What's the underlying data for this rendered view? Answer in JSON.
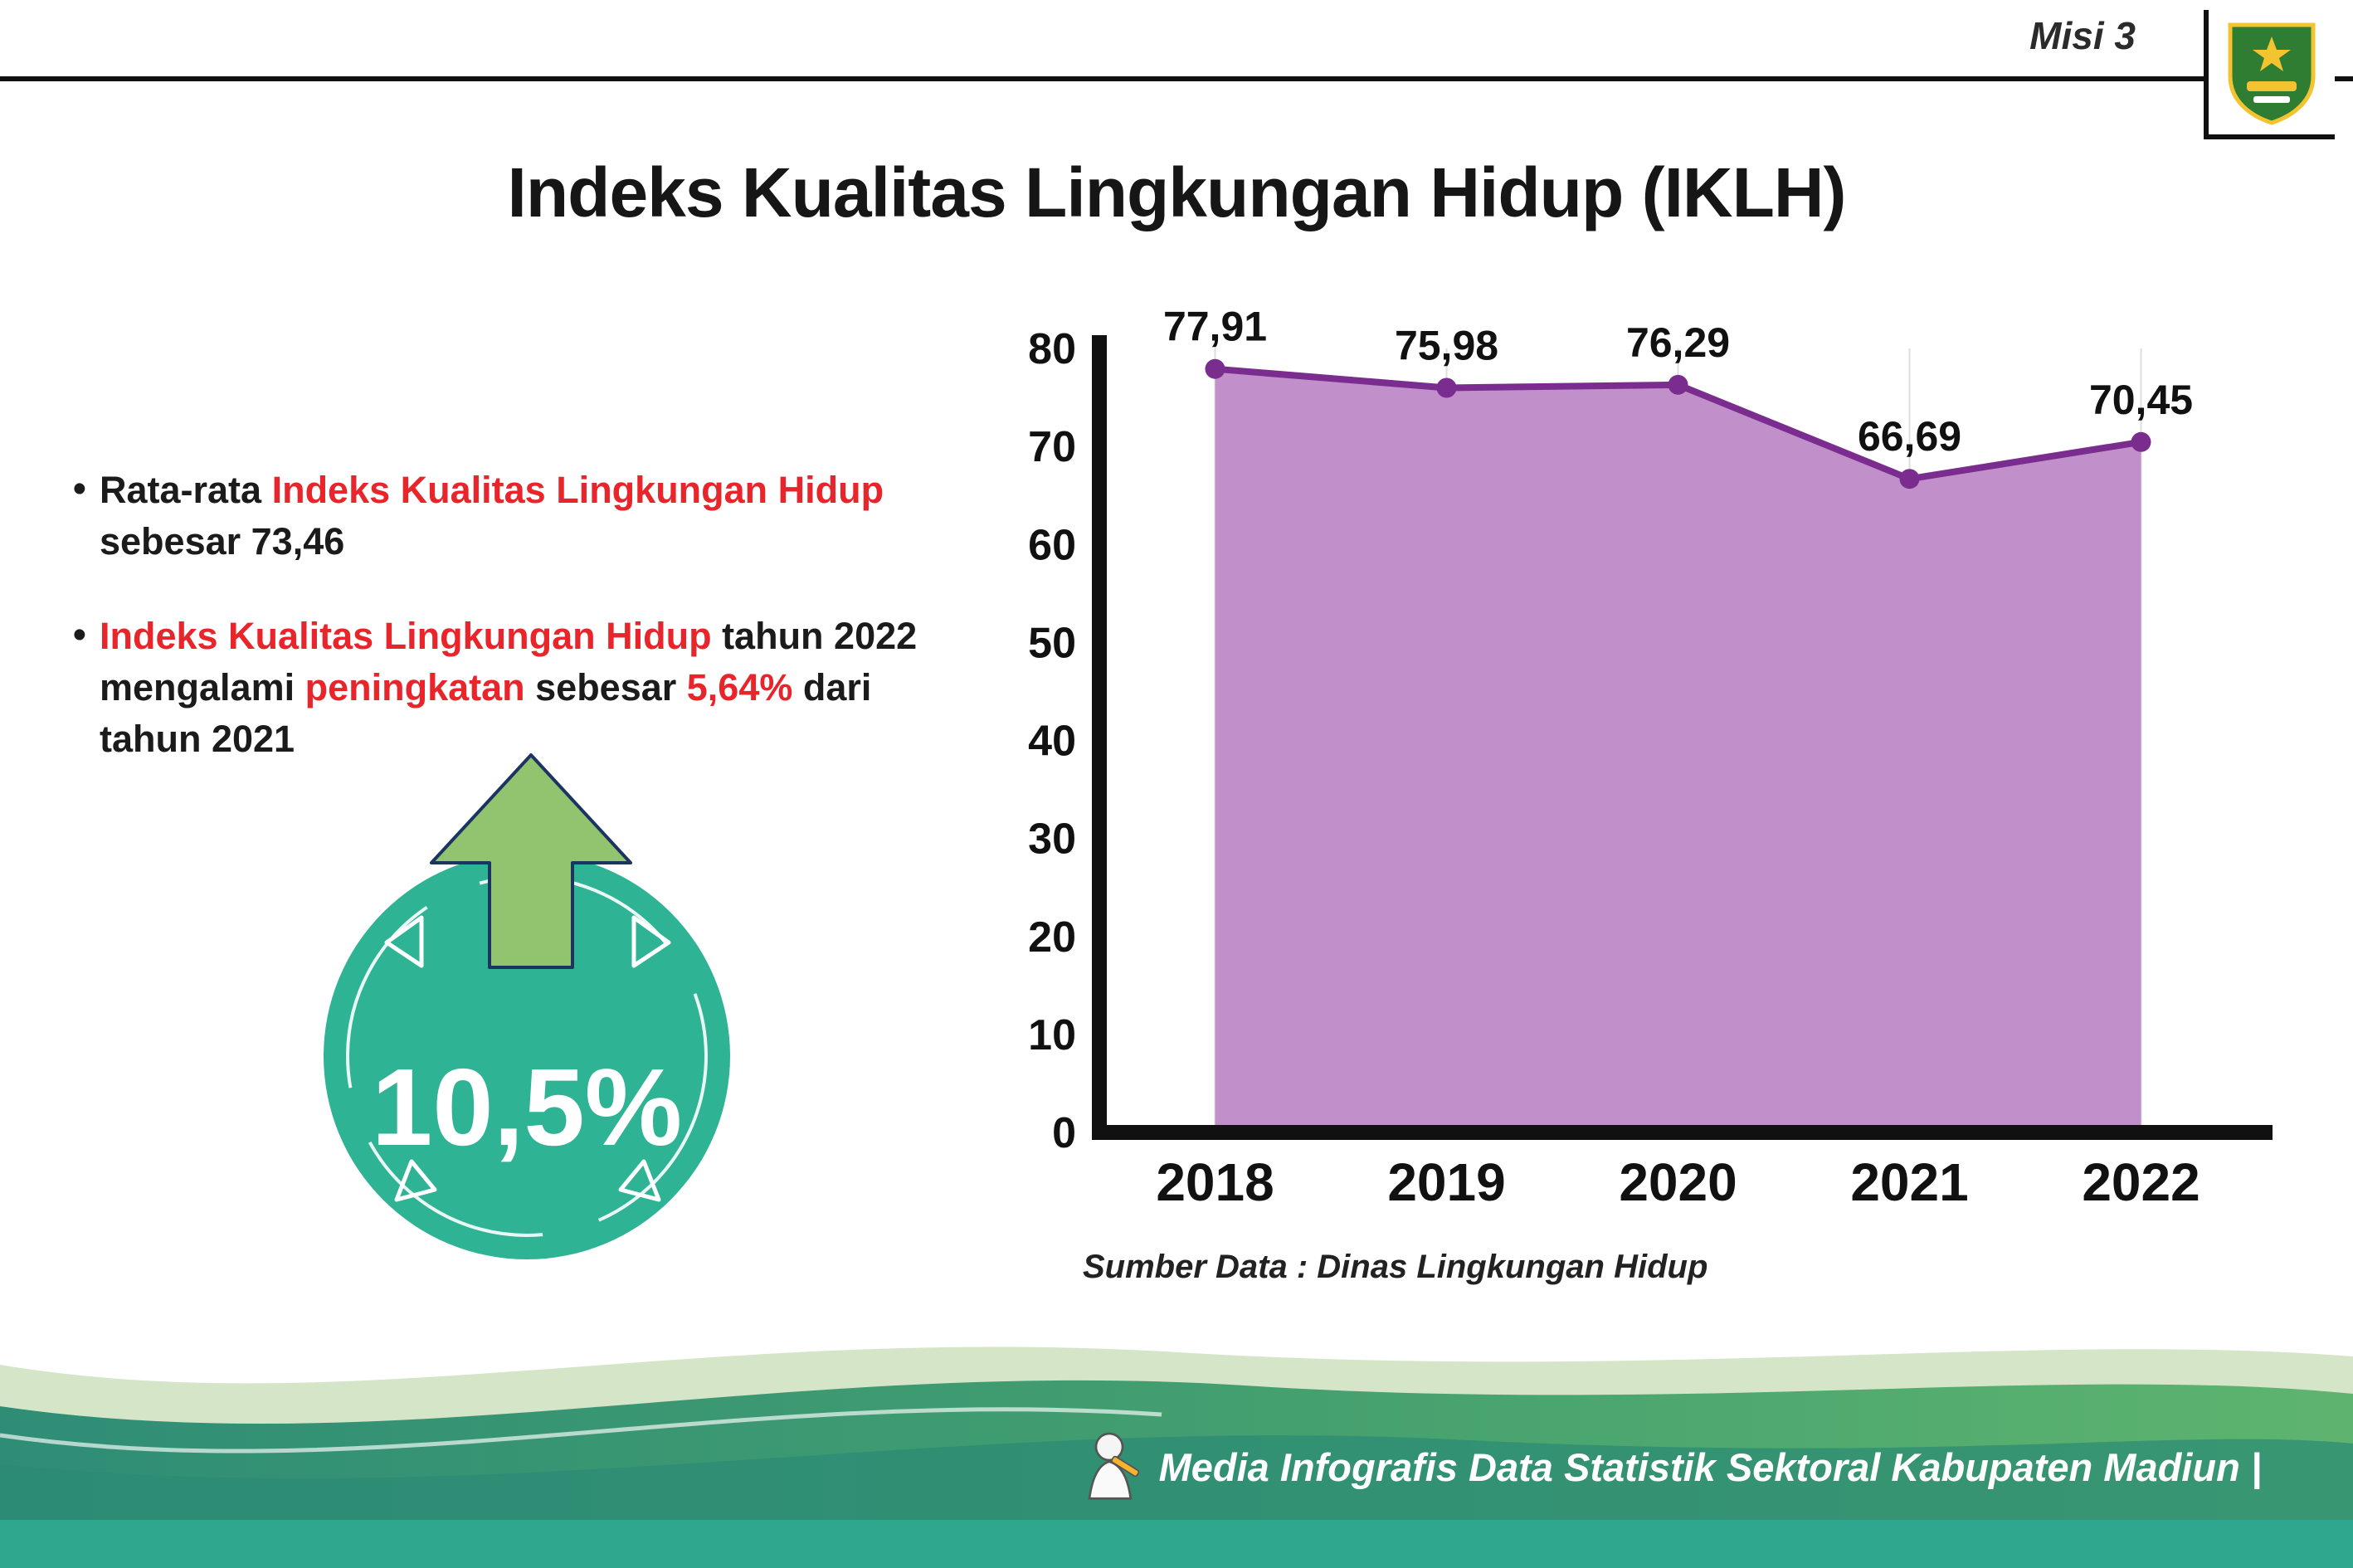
{
  "header": {
    "misi_label": "Misi 3",
    "logo": "kabupaten-madiun-crest"
  },
  "title": "Indeks Kualitas Lingkungan Hidup (IKLH)",
  "bullets": [
    {
      "segments": [
        {
          "text": "Rata-rata ",
          "color": "black"
        },
        {
          "text": "Indeks Kualitas Lingkungan Hidup",
          "color": "red"
        },
        {
          "text": " sebesar 73,46",
          "color": "black"
        }
      ]
    },
    {
      "segments": [
        {
          "text": "Indeks Kualitas Lingkungan Hidup",
          "color": "red"
        },
        {
          "text": " tahun 2022 mengalami ",
          "color": "black"
        },
        {
          "text": "peningkatan",
          "color": "red"
        },
        {
          "text": " sebesar ",
          "color": "black"
        },
        {
          "text": "5,64%",
          "color": "red"
        },
        {
          "text": " dari tahun 2021",
          "color": "black"
        }
      ]
    }
  ],
  "badge": {
    "value": "10,5%",
    "direction": "up"
  },
  "chart_data": {
    "type": "area",
    "categories": [
      "2018",
      "2019",
      "2020",
      "2021",
      "2022"
    ],
    "values": [
      77.91,
      75.98,
      76.29,
      66.69,
      70.45
    ],
    "value_labels": [
      "77,91",
      "75,98",
      "76,29",
      "66,69",
      "70,45"
    ],
    "title": "",
    "xlabel": "",
    "ylabel": "",
    "ylim": [
      0,
      80
    ],
    "yticks": [
      0,
      10,
      20,
      30,
      40,
      50,
      60,
      70,
      80
    ],
    "grid": "vertical-light",
    "legend": "none",
    "fill_color": "#c18fca",
    "line_color": "#7a2d8f",
    "source_note": "Sumber Data : Dinas Lingkungan Hidup"
  },
  "footer": {
    "text": "Media Infografis Data Statistik Sektoral Kabupaten Madiun |"
  },
  "colors": {
    "accent_red": "#e8252b",
    "badge_teal": "#2eb394",
    "arrow_green": "#92c36e",
    "arrow_outline_navy": "#1c3461",
    "area_fill_purple": "#c18fca",
    "line_purple": "#7a2d8f",
    "footer_band_teal": "#2fa78f",
    "axis_black": "#111111"
  }
}
